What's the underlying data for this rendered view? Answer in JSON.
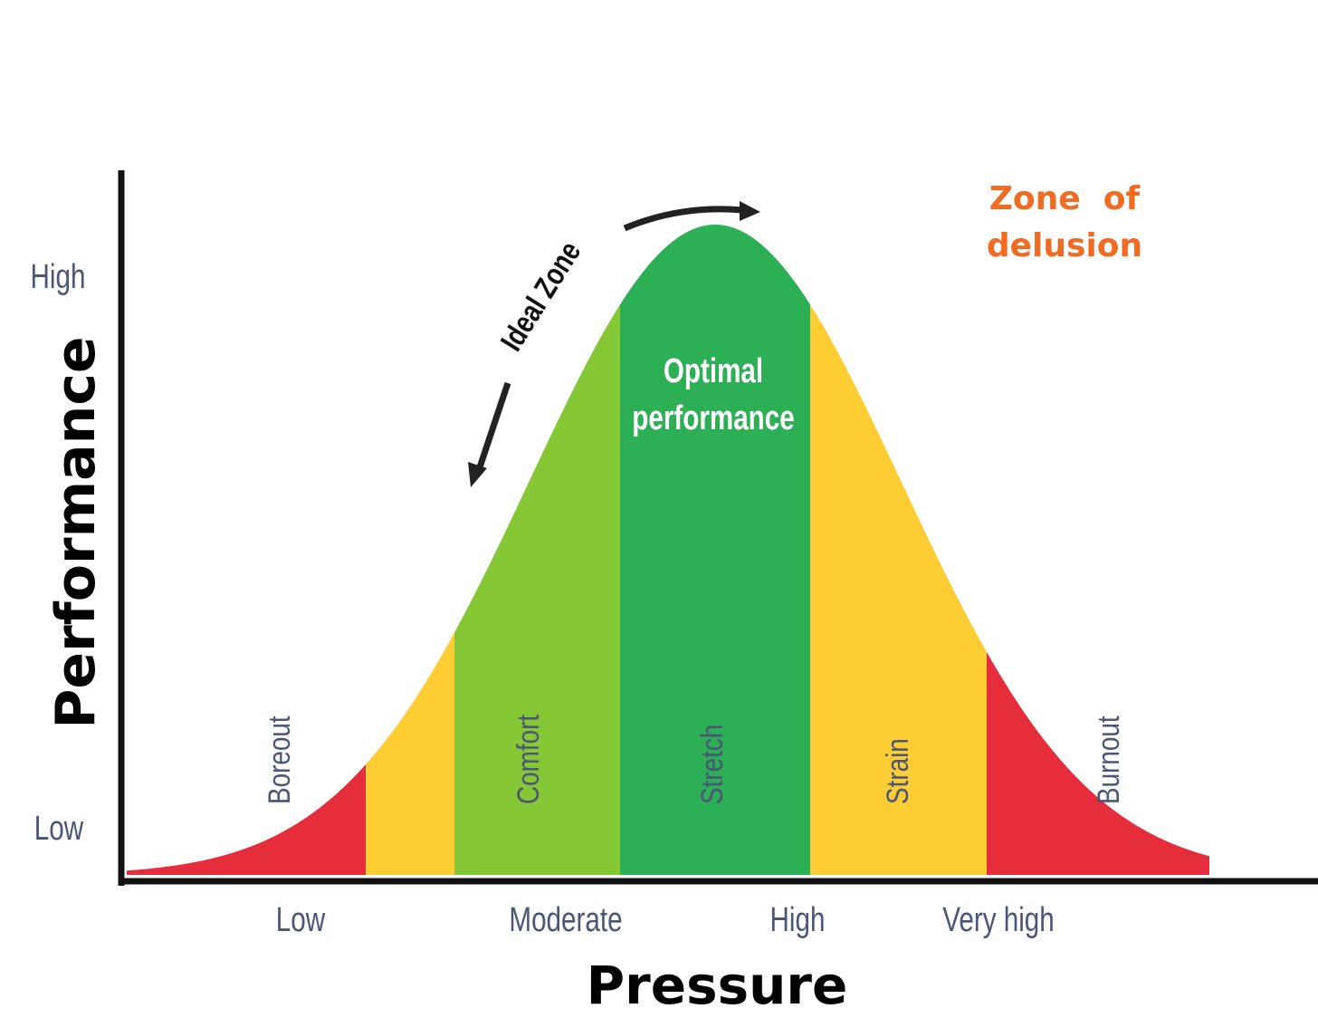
{
  "axes": {
    "y_title": "Performance",
    "x_title": "Pressure",
    "y_ticks": [
      "High",
      "Low"
    ],
    "x_ticks": [
      "Low",
      "Moderate",
      "High",
      "Very high"
    ]
  },
  "zones": [
    {
      "label": "Boreout",
      "color": "#e62d3c"
    },
    {
      "label": "",
      "color": "#fecd34"
    },
    {
      "label": "Comfort",
      "color": "#85c735"
    },
    {
      "label": "Stretch",
      "color": "#2daf56"
    },
    {
      "label": "Strain",
      "color": "#fecd34"
    },
    {
      "label": "Burnout",
      "color": "#e62d3c"
    }
  ],
  "annotations": {
    "optimal_line1": "Optimal",
    "optimal_line2": "performance",
    "ideal_zone": "Ideal Zone",
    "delusion_line1": "Zone  of",
    "delusion_line2": "delusion"
  },
  "colors": {
    "delusion": "#f26b22",
    "label_text": "#4a5578",
    "axis": "#111111"
  }
}
